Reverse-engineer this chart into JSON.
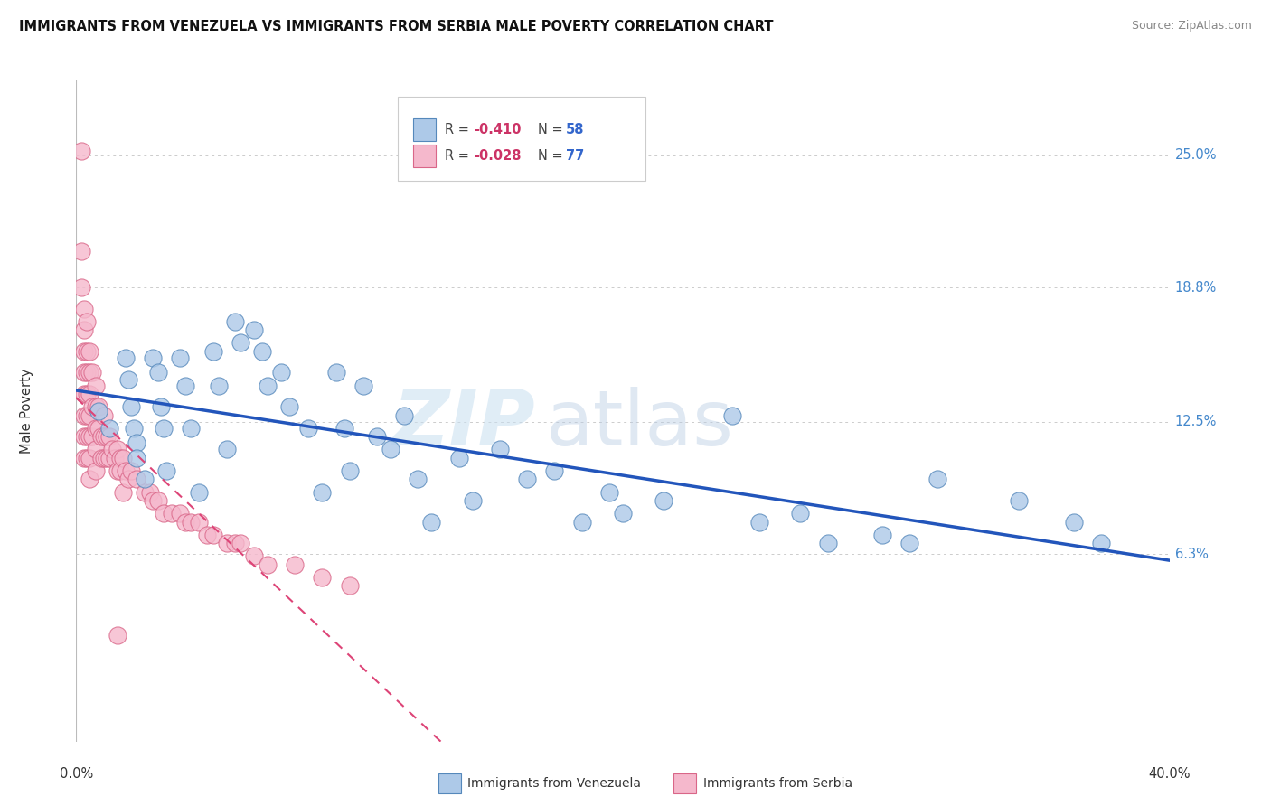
{
  "title": "IMMIGRANTS FROM VENEZUELA VS IMMIGRANTS FROM SERBIA MALE POVERTY CORRELATION CHART",
  "source": "Source: ZipAtlas.com",
  "ylabel": "Male Poverty",
  "y_ticks": [
    0.063,
    0.125,
    0.188,
    0.25
  ],
  "y_tick_labels": [
    "6.3%",
    "12.5%",
    "18.8%",
    "25.0%"
  ],
  "xlim": [
    0.0,
    0.4
  ],
  "ylim": [
    -0.025,
    0.285
  ],
  "venezuela_color": "#adc9e8",
  "serbia_color": "#f5b8cc",
  "venezuela_edge": "#5588bb",
  "serbia_edge": "#d96688",
  "trend_venezuela": "#2255bb",
  "trend_serbia": "#dd4477",
  "legend_label_venezuela": "Immigrants from Venezuela",
  "legend_label_serbia": "Immigrants from Serbia",
  "watermark_zip": "ZIP",
  "watermark_atlas": "atlas",
  "venezuela_x": [
    0.008,
    0.012,
    0.018,
    0.019,
    0.02,
    0.021,
    0.022,
    0.022,
    0.025,
    0.028,
    0.03,
    0.031,
    0.032,
    0.033,
    0.038,
    0.04,
    0.042,
    0.045,
    0.05,
    0.052,
    0.055,
    0.058,
    0.06,
    0.065,
    0.068,
    0.07,
    0.075,
    0.078,
    0.085,
    0.09,
    0.095,
    0.098,
    0.1,
    0.105,
    0.11,
    0.115,
    0.12,
    0.125,
    0.13,
    0.14,
    0.145,
    0.155,
    0.165,
    0.175,
    0.185,
    0.195,
    0.2,
    0.215,
    0.24,
    0.25,
    0.265,
    0.275,
    0.295,
    0.305,
    0.315,
    0.345,
    0.365,
    0.375
  ],
  "venezuela_y": [
    0.13,
    0.122,
    0.155,
    0.145,
    0.132,
    0.122,
    0.115,
    0.108,
    0.098,
    0.155,
    0.148,
    0.132,
    0.122,
    0.102,
    0.155,
    0.142,
    0.122,
    0.092,
    0.158,
    0.142,
    0.112,
    0.172,
    0.162,
    0.168,
    0.158,
    0.142,
    0.148,
    0.132,
    0.122,
    0.092,
    0.148,
    0.122,
    0.102,
    0.142,
    0.118,
    0.112,
    0.128,
    0.098,
    0.078,
    0.108,
    0.088,
    0.112,
    0.098,
    0.102,
    0.078,
    0.092,
    0.082,
    0.088,
    0.128,
    0.078,
    0.082,
    0.068,
    0.072,
    0.068,
    0.098,
    0.088,
    0.078,
    0.068
  ],
  "serbia_x": [
    0.002,
    0.002,
    0.002,
    0.003,
    0.003,
    0.003,
    0.003,
    0.003,
    0.003,
    0.003,
    0.003,
    0.004,
    0.004,
    0.004,
    0.004,
    0.004,
    0.004,
    0.004,
    0.005,
    0.005,
    0.005,
    0.005,
    0.005,
    0.005,
    0.005,
    0.006,
    0.006,
    0.006,
    0.007,
    0.007,
    0.007,
    0.007,
    0.007,
    0.008,
    0.008,
    0.009,
    0.009,
    0.01,
    0.01,
    0.01,
    0.011,
    0.011,
    0.012,
    0.012,
    0.013,
    0.014,
    0.015,
    0.015,
    0.016,
    0.016,
    0.017,
    0.017,
    0.018,
    0.019,
    0.02,
    0.022,
    0.025,
    0.027,
    0.028,
    0.03,
    0.032,
    0.035,
    0.038,
    0.04,
    0.042,
    0.045,
    0.048,
    0.05,
    0.055,
    0.058,
    0.06,
    0.065,
    0.07,
    0.08,
    0.09,
    0.1,
    0.015
  ],
  "serbia_y": [
    0.252,
    0.205,
    0.188,
    0.178,
    0.168,
    0.158,
    0.148,
    0.138,
    0.128,
    0.118,
    0.108,
    0.172,
    0.158,
    0.148,
    0.138,
    0.128,
    0.118,
    0.108,
    0.158,
    0.148,
    0.138,
    0.128,
    0.118,
    0.108,
    0.098,
    0.148,
    0.132,
    0.118,
    0.142,
    0.132,
    0.122,
    0.112,
    0.102,
    0.132,
    0.122,
    0.118,
    0.108,
    0.128,
    0.118,
    0.108,
    0.118,
    0.108,
    0.118,
    0.108,
    0.112,
    0.108,
    0.112,
    0.102,
    0.108,
    0.102,
    0.108,
    0.092,
    0.102,
    0.098,
    0.102,
    0.098,
    0.092,
    0.092,
    0.088,
    0.088,
    0.082,
    0.082,
    0.082,
    0.078,
    0.078,
    0.078,
    0.072,
    0.072,
    0.068,
    0.068,
    0.068,
    0.062,
    0.058,
    0.058,
    0.052,
    0.048,
    0.025
  ]
}
